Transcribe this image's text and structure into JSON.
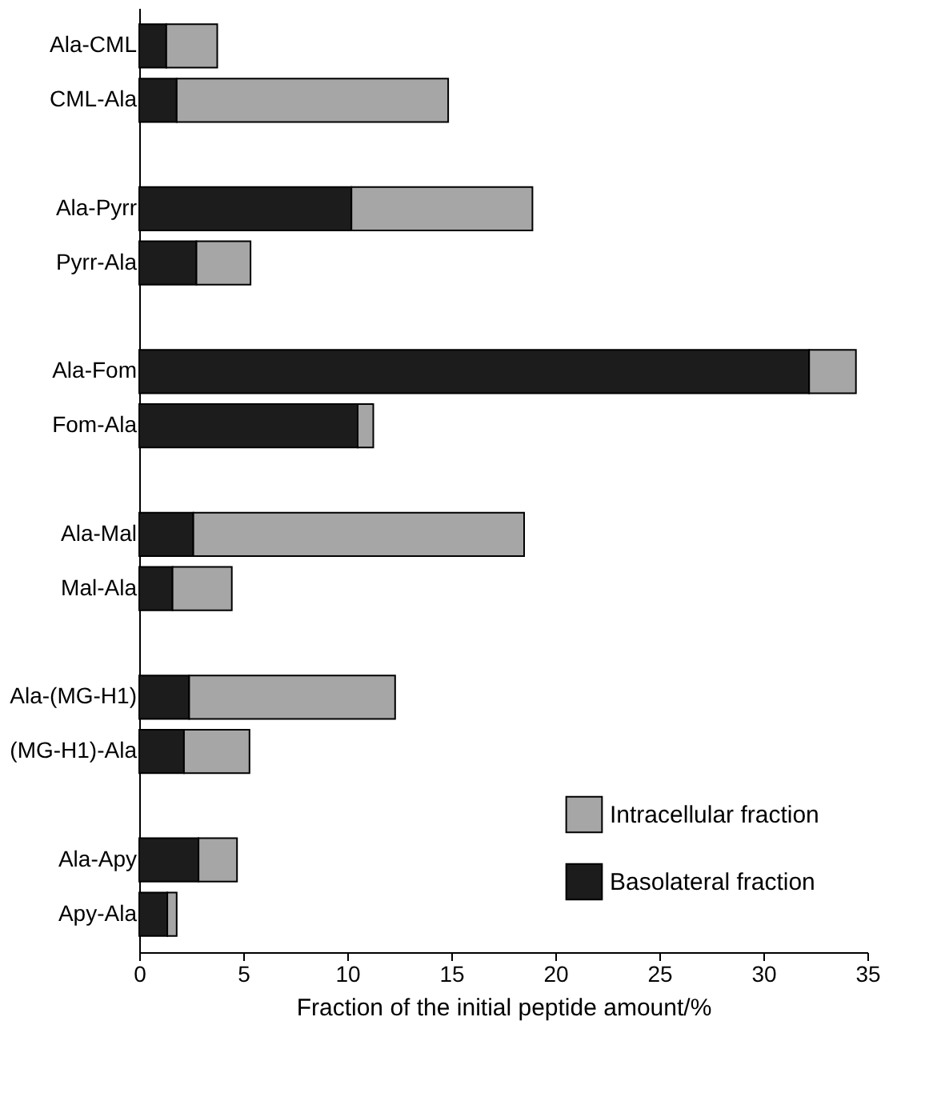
{
  "chart_data": {
    "type": "bar",
    "orientation": "horizontal",
    "stacked": true,
    "categories": [
      "Ala-CML",
      "CML-Ala",
      "Ala-Pyrr",
      "Pyrr-Ala",
      "Ala-Fom",
      "Fom-Ala",
      "Ala-Mal",
      "Mal-Ala",
      "Ala-(MG-H1)",
      "(MG-H1)-Ala",
      "Ala-Apy",
      "Apy-Ala"
    ],
    "series": [
      {
        "name": "Basolateral fraction",
        "color": "#1c1c1c",
        "values": [
          1.3,
          1.8,
          10.2,
          2.75,
          32.2,
          10.5,
          2.6,
          1.6,
          2.4,
          2.15,
          2.85,
          1.35
        ]
      },
      {
        "name": "Intracellular fraction",
        "color": "#a6a6a6",
        "values": [
          2.45,
          13.05,
          8.7,
          2.6,
          2.25,
          0.75,
          15.9,
          2.85,
          9.9,
          3.15,
          1.85,
          0.45
        ]
      }
    ],
    "xlabel": "Fraction of the initial peptide amount/%",
    "xlim": [
      0,
      35
    ],
    "xticks": [
      0,
      5,
      10,
      15,
      20,
      25,
      30,
      35
    ],
    "legend": "bottom right",
    "grid": false
  }
}
